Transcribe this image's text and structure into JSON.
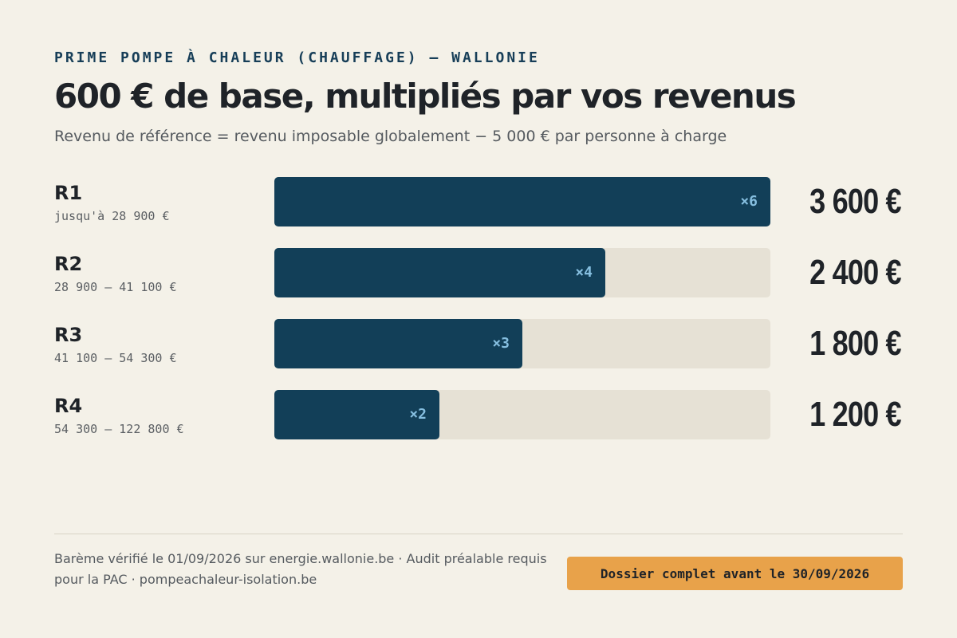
{
  "header": {
    "kicker": "PRIME POMPE À CHALEUR (CHAUFFAGE) — WALLONIE",
    "title": "600 € de base, multipliés par vos revenus",
    "subtitle": "Revenu de référence = revenu imposable globalement − 5 000 € par personne à charge"
  },
  "chart_data": {
    "type": "bar",
    "orientation": "horizontal",
    "title": "600 € de base, multipliés par vos revenus",
    "base_amount": 600,
    "max_multiplier": 6,
    "categories": [
      "R1",
      "R2",
      "R3",
      "R4"
    ],
    "ranges": [
      "jusqu'à 28 900 €",
      "28 900 – 41 100 €",
      "41 100 – 54 300 €",
      "54 300 – 122 800 €"
    ],
    "multipliers": [
      6,
      4,
      3,
      2
    ],
    "multiplier_labels": [
      "×6",
      "×4",
      "×3",
      "×2"
    ],
    "values": [
      3600,
      2400,
      1800,
      1200
    ],
    "value_labels": [
      "3 600 €",
      "2 400 €",
      "1 800 €",
      "1 200 €"
    ],
    "colors": {
      "bar": "#123f58",
      "track": "#e6e1d5",
      "multiplier_text": "#86bfe0"
    }
  },
  "footer": {
    "note": "Barème vérifié le 01/09/2026 sur energie.wallonie.be · Audit préalable requis pour la PAC · pompeachaleur-isolation.be",
    "deadline": "Dossier complet avant le 30/09/2026",
    "deadline_color": "#e8a24a"
  }
}
